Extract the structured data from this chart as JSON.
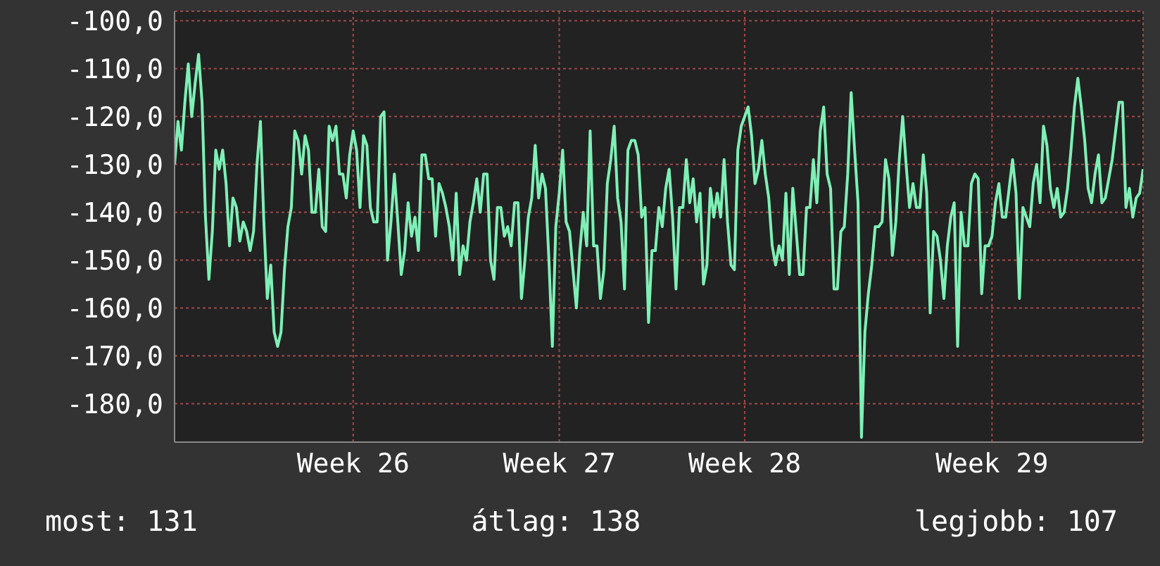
{
  "chart_data": {
    "type": "line",
    "color": "#7ef0b6",
    "grid": true,
    "marker": "none",
    "ylim": [
      -188,
      -98
    ],
    "categories": [
      null,
      null,
      null,
      null,
      null,
      null,
      null,
      null,
      null,
      null,
      null,
      null,
      null,
      null,
      null,
      null,
      null,
      null,
      null,
      null,
      null,
      null,
      null,
      null,
      null,
      null,
      null,
      null,
      null,
      null,
      null,
      null,
      null,
      null,
      null,
      null,
      null,
      null,
      null,
      null,
      null,
      null,
      null,
      null,
      null,
      null,
      null,
      null,
      null,
      null,
      null,
      null,
      "Week 26",
      null,
      null,
      null,
      null,
      null,
      null,
      null,
      null,
      null,
      null,
      null,
      null,
      null,
      null,
      null,
      null,
      null,
      null,
      null,
      null,
      null,
      null,
      null,
      null,
      null,
      null,
      null,
      null,
      null,
      null,
      null,
      null,
      null,
      null,
      null,
      null,
      null,
      null,
      null,
      null,
      null,
      null,
      null,
      null,
      null,
      null,
      null,
      null,
      null,
      null,
      null,
      null,
      null,
      null,
      null,
      null,
      null,
      null,
      null,
      "Week 27",
      null,
      null,
      null,
      null,
      null,
      null,
      null,
      null,
      null,
      null,
      null,
      null,
      null,
      null,
      null,
      null,
      null,
      null,
      null,
      null,
      null,
      null,
      null,
      null,
      null,
      null,
      null,
      null,
      null,
      null,
      null,
      null,
      null,
      null,
      null,
      null,
      null,
      null,
      null,
      null,
      null,
      null,
      null,
      null,
      null,
      null,
      null,
      null,
      null,
      null,
      null,
      null,
      null,
      "Week 28",
      null,
      null,
      null,
      null,
      null,
      null,
      null,
      null,
      null,
      null,
      null,
      null,
      null,
      null,
      null,
      null,
      null,
      null,
      null,
      null,
      null,
      null,
      null,
      null,
      null,
      null,
      null,
      null,
      null,
      null,
      null,
      null,
      null,
      null,
      null,
      null,
      null,
      null,
      null,
      null,
      null,
      null,
      null,
      null,
      null,
      null,
      null,
      null,
      null,
      null,
      null,
      null,
      null,
      null,
      null,
      null,
      null,
      null,
      null,
      null,
      null,
      null,
      null,
      null,
      null,
      null,
      null,
      null,
      null,
      null,
      null,
      "Week 29",
      null,
      null,
      null,
      null,
      null,
      null,
      null,
      null,
      null,
      null,
      null,
      null,
      null,
      null,
      null,
      null,
      null,
      null,
      null,
      null,
      null,
      null,
      null,
      null,
      null,
      null,
      null,
      null,
      null,
      null,
      null,
      null,
      null,
      null,
      null,
      null,
      null,
      null,
      null,
      null,
      null,
      null,
      null,
      null
    ],
    "yticks": [
      {
        "value": -100,
        "label": "-100,0"
      },
      {
        "value": -110,
        "label": "-110,0"
      },
      {
        "value": -120,
        "label": "-120,0"
      },
      {
        "value": -130,
        "label": "-130,0"
      },
      {
        "value": -140,
        "label": "-140,0"
      },
      {
        "value": -150,
        "label": "-150,0"
      },
      {
        "value": -160,
        "label": "-160,0"
      },
      {
        "value": -170,
        "label": "-170,0"
      },
      {
        "value": -180,
        "label": "-180,0"
      }
    ],
    "annotations": [
      "most: 131",
      "átlag: 138",
      "legjobb: 107"
    ],
    "values": [
      -130,
      -121,
      -127,
      -117,
      -109,
      -120,
      -113,
      -107,
      -117,
      -141,
      -154,
      -144,
      -127,
      -131,
      -127,
      -134,
      -147,
      -137,
      -139,
      -146,
      -142,
      -144,
      -148,
      -144,
      -130,
      -121,
      -142,
      -158,
      -151,
      -165,
      -168,
      -165,
      -152,
      -143,
      -139,
      -123,
      -125,
      -132,
      -124,
      -127,
      -140,
      -140,
      -131,
      -143,
      -144,
      -122,
      -125,
      -122,
      -132,
      -132,
      -137,
      -128,
      -123,
      -127,
      -139,
      -124,
      -126,
      -139,
      -142,
      -142,
      -120,
      -119,
      -150,
      -142,
      -132,
      -142,
      -153,
      -148,
      -138,
      -145,
      -141,
      -148,
      -128,
      -128,
      -133,
      -133,
      -145,
      -134,
      -136,
      -139,
      -143,
      -150,
      -136,
      -153,
      -147,
      -150,
      -142,
      -138,
      -133,
      -140,
      -132,
      -132,
      -150,
      -154,
      -139,
      -139,
      -145,
      -143,
      -147,
      -138,
      -138,
      -158,
      -150,
      -141,
      -137,
      -126,
      -137,
      -132,
      -135,
      -150,
      -168,
      -143,
      -136,
      -127,
      -142,
      -144,
      -152,
      -160,
      -148,
      -140,
      -147,
      -123,
      -147,
      -147,
      -158,
      -152,
      -134,
      -129,
      -122,
      -137,
      -142,
      -156,
      -127,
      -125,
      -125,
      -128,
      -141,
      -139,
      -163,
      -148,
      -148,
      -139,
      -143,
      -135,
      -131,
      -141,
      -156,
      -139,
      -139,
      -129,
      -138,
      -133,
      -142,
      -136,
      -155,
      -151,
      -135,
      -141,
      -136,
      -141,
      -129,
      -142,
      -151,
      -152,
      -127,
      -122,
      -120,
      -118,
      -124,
      -134,
      -131,
      -125,
      -132,
      -137,
      -147,
      -151,
      -147,
      -150,
      -136,
      -153,
      -135,
      -144,
      -153,
      -153,
      -139,
      -139,
      -129,
      -138,
      -123,
      -118,
      -132,
      -135,
      -156,
      -156,
      -144,
      -143,
      -132,
      -115,
      -127,
      -138,
      -187,
      -165,
      -157,
      -151,
      -143,
      -143,
      -142,
      -129,
      -133,
      -149,
      -142,
      -129,
      -120,
      -130,
      -139,
      -134,
      -139,
      -139,
      -128,
      -136,
      -161,
      -144,
      -145,
      -150,
      -158,
      -147,
      -141,
      -138,
      -168,
      -140,
      -147,
      -147,
      -134,
      -132,
      -133,
      -157,
      -147,
      -147,
      -145,
      -138,
      -134,
      -141,
      -141,
      -135,
      -129,
      -136,
      -158,
      -139,
      -141,
      -143,
      -134,
      -130,
      -138,
      -122,
      -126,
      -135,
      -139,
      -135,
      -141,
      -140,
      -135,
      -127,
      -118,
      -112,
      -118,
      -125,
      -135,
      -138,
      -132,
      -128,
      -138,
      -137,
      -133,
      -129,
      -123,
      -117,
      -117,
      -139,
      -135,
      -141,
      -137,
      -136,
      -131
    ]
  }
}
